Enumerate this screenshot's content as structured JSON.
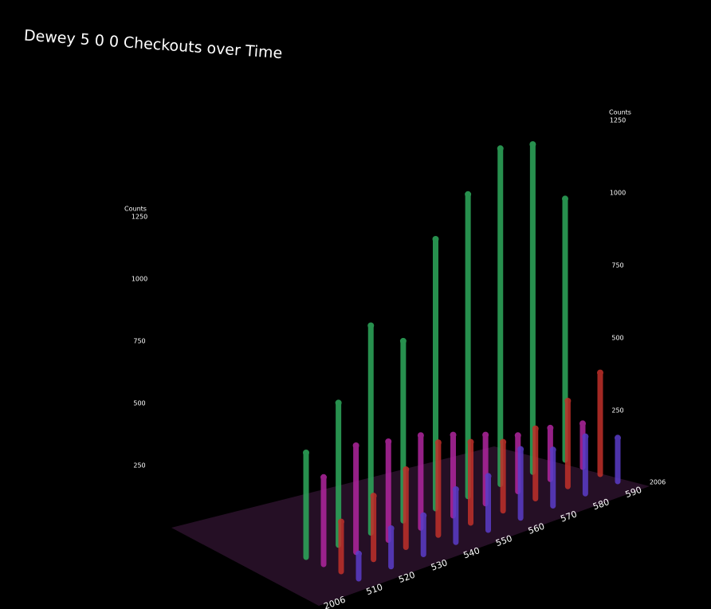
{
  "chart_data": {
    "type": "bar3d",
    "title": "Dewey 5 0 0 Checkouts over Time",
    "ylabel": "Counts",
    "categories": [
      "510",
      "520",
      "530",
      "540",
      "550",
      "560",
      "570",
      "580",
      "590"
    ],
    "depth_labels": [
      "2006",
      "2006"
    ],
    "ylim": [
      0,
      1250
    ],
    "yticks": [
      250,
      500,
      750,
      1000,
      1250
    ],
    "series": [
      {
        "color": "#2eaa5c",
        "values": [
          420,
          560,
          800,
          680,
          1000,
          1100,
          1200,
          1150,
          900
        ]
      },
      {
        "color": "#b0269e",
        "values": [
          350,
          420,
          380,
          350,
          300,
          250,
          200,
          180,
          150
        ]
      },
      {
        "color": "#c0302a",
        "values": [
          200,
          250,
          300,
          350,
          300,
          250,
          250,
          300,
          350
        ]
      },
      {
        "color": "#5a3cc8",
        "values": [
          100,
          150,
          150,
          200,
          200,
          250,
          200,
          200,
          150
        ]
      }
    ]
  }
}
